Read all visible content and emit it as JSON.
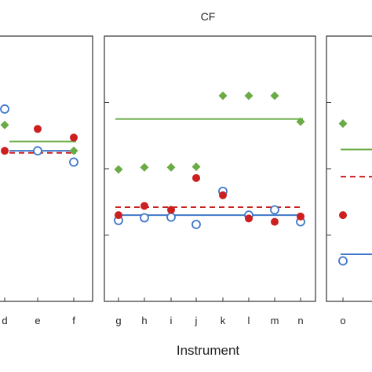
{
  "chart_data": {
    "type": "scatter",
    "xlabel": "Instrument",
    "ylim": [
      0,
      4
    ],
    "grid": false,
    "colors": {
      "green": "#6aab46",
      "red": "#cc1f1f",
      "blue": "#3f78c9"
    },
    "series_style": {
      "green": "diamond, filled",
      "red": "circle, filled",
      "blue": "circle, open"
    },
    "panels": [
      {
        "title": "",
        "categories": [
          "d",
          "e",
          "f"
        ],
        "green": [
          2.66,
          null,
          2.27
        ],
        "red": [
          2.27,
          2.6,
          2.47
        ],
        "blue": [
          2.9,
          2.27,
          2.1
        ],
        "green_mean": 2.41,
        "red_mean": 2.24,
        "blue_mean": 2.27
      },
      {
        "title": "CF",
        "categories": [
          "g",
          "h",
          "i",
          "j",
          "k",
          "l",
          "m",
          "n"
        ],
        "green": [
          1.99,
          2.02,
          2.02,
          2.03,
          3.1,
          3.1,
          3.1,
          2.71
        ],
        "red": [
          1.3,
          1.44,
          1.38,
          1.86,
          1.6,
          1.25,
          1.2,
          1.28
        ],
        "blue": [
          1.22,
          1.26,
          1.27,
          1.16,
          1.66,
          1.3,
          1.38,
          1.2
        ],
        "green_mean": 2.75,
        "red_mean": 1.42,
        "blue_mean": 1.3
      },
      {
        "title": "",
        "categories": [
          "o"
        ],
        "green": [
          2.68
        ],
        "red": [
          1.3
        ],
        "blue": [
          0.61
        ],
        "green_mean": 2.29,
        "red_mean": 1.88,
        "blue_mean": 0.71
      }
    ]
  }
}
